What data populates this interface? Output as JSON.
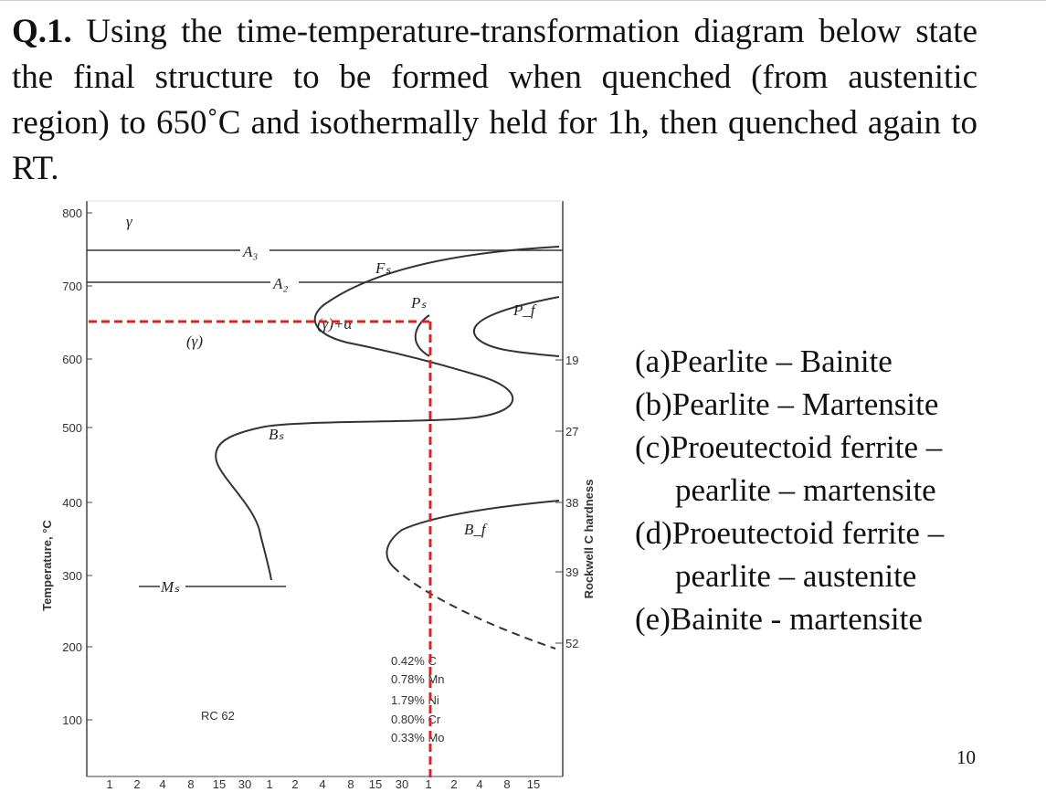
{
  "question": {
    "number": "Q.1.",
    "text": "Using the time-temperature-transformation diagram below state the final structure to be formed when quenched (from austenitic region) to 650˚C and isothermally held for 1h, then quenched again to RT."
  },
  "options": [
    {
      "id": "a",
      "label": "(a)Pearlite – Bainite"
    },
    {
      "id": "b",
      "label": "(b)Pearlite – Martensite"
    },
    {
      "id": "c",
      "label": "(c)Proeutectoid ferrite –",
      "continuation": "pearlite – martensite"
    },
    {
      "id": "d",
      "label": "(d)Proeutectoid ferrite –",
      "continuation": "pearlite – austenite"
    },
    {
      "id": "e",
      "label": "(e)Bainite - martensite"
    }
  ],
  "page_number": "10",
  "diagram": {
    "y_axis_title": "Temperature, °C",
    "right_axis_title": "Rockwell C hardness",
    "y_ticks": [
      "800",
      "700",
      "600",
      "500",
      "400",
      "300",
      "200",
      "100"
    ],
    "x_ticks": [
      "1",
      "2",
      "4",
      "8",
      "15",
      "30",
      "1",
      "2",
      "4",
      "8",
      "15",
      "30",
      "1",
      "2",
      "4",
      "8",
      "15"
    ],
    "hardness_ticks": [
      {
        "label": "19",
        "temp": 595
      },
      {
        "label": "27",
        "temp": 505
      },
      {
        "label": "38",
        "temp": 400
      },
      {
        "label": "39",
        "temp": 305
      },
      {
        "label": "52",
        "temp": 205
      }
    ],
    "region_labels": {
      "gamma_top": "γ",
      "a3": "A₃",
      "a2": "A₂",
      "fs": "Fₛ",
      "ps": "Pₛ",
      "pf": "P_f",
      "gamma_alpha": "(γ)+α",
      "gamma_paren": "(γ)",
      "bs": "Bₛ",
      "bf": "B_f",
      "ms": "Mₛ",
      "rc62": "RC 62"
    },
    "composition": [
      "0.42% C",
      "0.78% Mn",
      "1.79% Ni",
      "0.80% Cr",
      "0.33% Mo"
    ],
    "quench_path": {
      "temperature_C": 650,
      "color": "#e02020"
    },
    "isotherms_C": {
      "A3": 750,
      "A2": 710,
      "Ms": 280
    }
  }
}
